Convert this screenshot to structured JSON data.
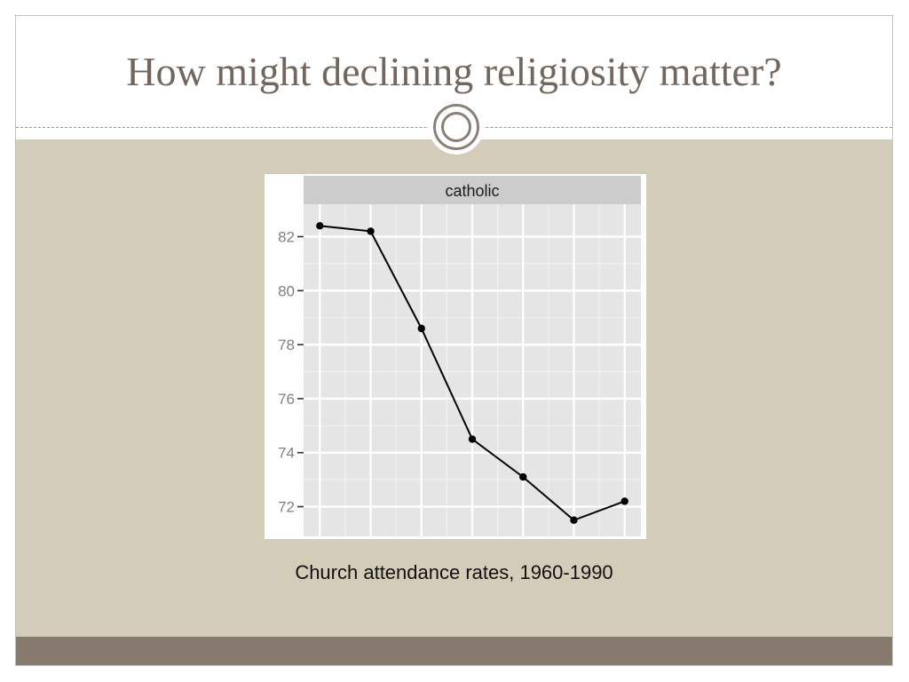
{
  "slide": {
    "title": "How might declining religiosity matter?",
    "caption": "Church attendance rates, 1960-1990"
  },
  "colors": {
    "title_text": "#73675d",
    "content_background": "#d2ccb9",
    "footer_band": "#857a6d",
    "panel_background": "#e5e5e5",
    "strip_background": "#cccccc"
  },
  "chart_data": {
    "type": "line",
    "facet_label": "catholic",
    "title": "",
    "xlabel": "",
    "ylabel": "",
    "x": [
      1,
      2,
      3,
      4,
      5,
      6,
      7
    ],
    "series": [
      {
        "values": [
          82.4,
          82.2,
          78.6,
          74.5,
          73.1,
          71.5,
          72.2
        ]
      }
    ],
    "yticks": [
      72,
      74,
      76,
      78,
      80,
      82
    ],
    "ylim": [
      70.9,
      83.2
    ],
    "grid": true,
    "legend": "none"
  }
}
